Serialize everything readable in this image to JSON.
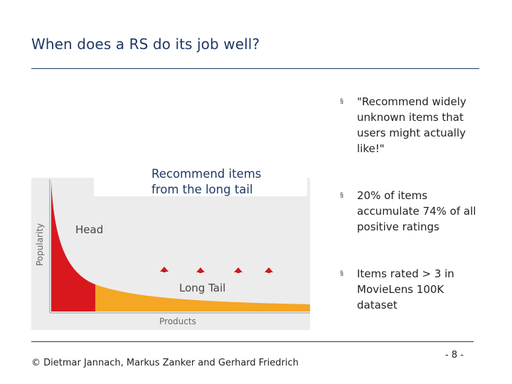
{
  "slide": {
    "title": "When does a RS do its job well?"
  },
  "figure": {
    "callout_line1": "Recommend items",
    "callout_line2": "from the long tail",
    "labels": {
      "head": "Head",
      "long_tail": "Long Tail",
      "y_axis": "Popularity",
      "x_axis": "Products"
    },
    "colors": {
      "head": "#d9181e",
      "tail": "#f5a623",
      "arrow": "#cc1a1a",
      "text": "#1f3864"
    }
  },
  "bullets": [
    {
      "text": "\"Recommend widely unknown items that users might actually like!\""
    },
    {
      "text": "20% of items accumulate 74% of all positive ratings"
    },
    {
      "text": "Items rated > 3 in MovieLens 100K dataset"
    }
  ],
  "bullet_marker": "§",
  "footer": {
    "copyright": "© Dietmar Jannach, Markus Zanker and Gerhard Friedrich",
    "page_number": "- 8 -"
  }
}
